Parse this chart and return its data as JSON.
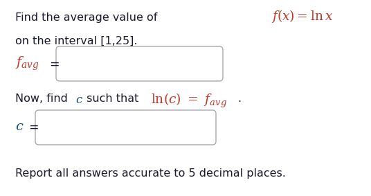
{
  "bg_color": "#ffffff",
  "text_color": "#1a1a2e",
  "red_color": "#c0392b",
  "green_color": "#2471a3",
  "box_edge_color": "#aaaaaa",
  "line1": "Find the average value of",
  "line2": "on the interval [1,25].",
  "line4": "Report all answers accurate to 5 decimal places.",
  "fig_w": 5.36,
  "fig_h": 2.83,
  "dpi": 100,
  "font_size_body": 11.5,
  "font_size_math": 13
}
